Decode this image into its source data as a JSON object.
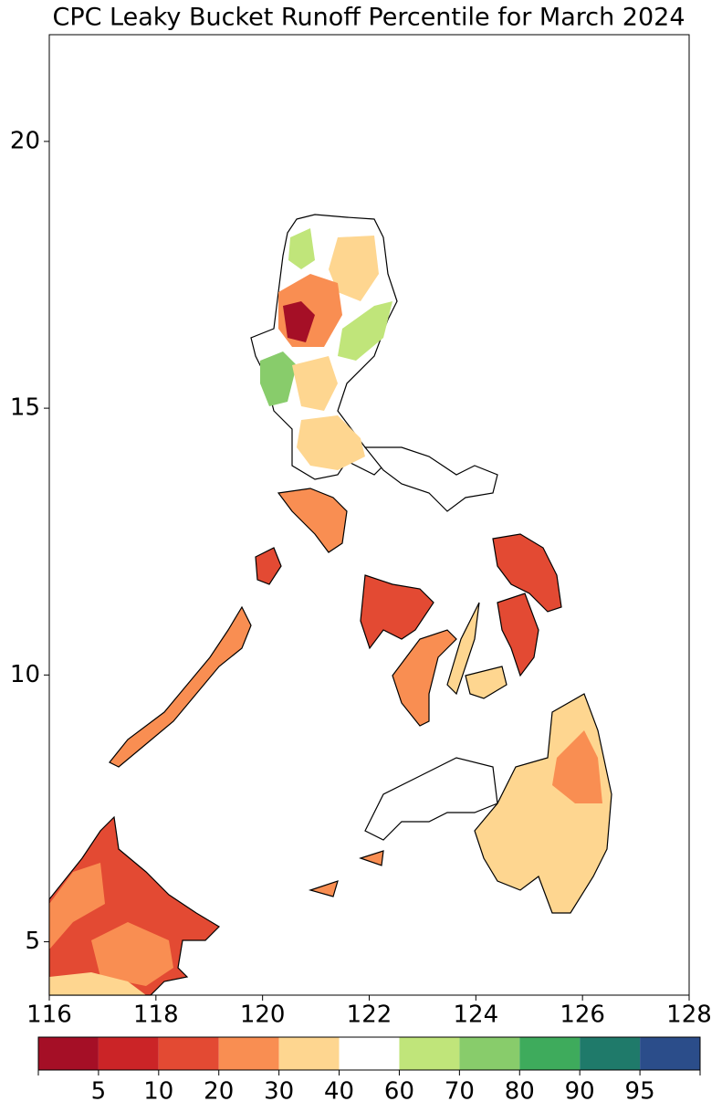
{
  "chart_data": {
    "type": "contour-map",
    "title": "CPC Leaky Bucket Runoff Percentile for March 2024",
    "title_color": "#0000ff",
    "xlim": [
      116,
      128
    ],
    "ylim": [
      4,
      22
    ],
    "xticks": [
      116,
      118,
      120,
      122,
      124,
      126,
      128
    ],
    "yticks": [
      5,
      10,
      15,
      20
    ],
    "colorbar": {
      "colors": [
        "#a50f26",
        "#cb2427",
        "#e34a33",
        "#f98e52",
        "#fed690",
        "#ffffff",
        "#c0e57a",
        "#88cc6b",
        "#3eab5c",
        "#1f7a6a",
        "#2b4d8a"
      ],
      "ticks": [
        5,
        10,
        20,
        30,
        40,
        60,
        70,
        80,
        90,
        95
      ]
    }
  }
}
